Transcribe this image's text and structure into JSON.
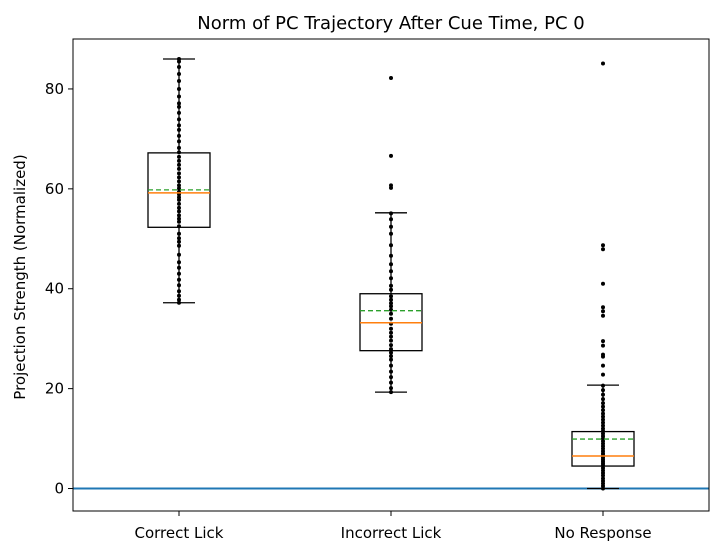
{
  "chart_data": {
    "type": "box",
    "title": "Norm of PC Trajectory After Cue Time, PC 0",
    "xlabel": "",
    "ylabel": "Projection Strength (Normalized)",
    "ylim": [
      -4.5,
      90
    ],
    "yticks": [
      0,
      20,
      40,
      60,
      80
    ],
    "categories": [
      "Correct Lick",
      "Incorrect Lick",
      "No Response"
    ],
    "reference_line": {
      "y": 0,
      "color": "#1f77b4"
    },
    "colors": {
      "box": "#000000",
      "median": "#ff7f0e",
      "mean": "#2ca02c",
      "points": "#000000"
    },
    "boxes": [
      {
        "category": "Correct Lick",
        "whisker_low": 37.2,
        "q1": 52.3,
        "median": 59.2,
        "mean": 59.8,
        "q3": 67.2,
        "whisker_high": 86.0,
        "points": [
          37.2,
          37.8,
          38.6,
          39.5,
          40.7,
          41.8,
          43.0,
          44.2,
          45.3,
          46.8,
          48.6,
          49.4,
          50.1,
          51.0,
          52.5,
          53.4,
          54.0,
          54.7,
          55.5,
          56.2,
          57.0,
          57.8,
          58.3,
          58.9,
          59.4,
          60.1,
          60.7,
          61.5,
          62.3,
          63.1,
          64.0,
          64.8,
          65.6,
          66.4,
          67.3,
          68.2,
          69.5,
          70.6,
          71.8,
          72.7,
          73.9,
          75.2,
          76.4,
          77.1,
          78.5,
          80.0,
          81.6,
          83.0,
          84.4,
          85.5,
          86.0
        ]
      },
      {
        "category": "Incorrect Lick",
        "whisker_low": 19.3,
        "q1": 27.6,
        "median": 33.2,
        "mean": 35.6,
        "q3": 39.0,
        "whisker_high": 55.2,
        "points": [
          19.3,
          20.1,
          21.2,
          22.3,
          23.4,
          24.6,
          25.8,
          26.5,
          27.2,
          27.9,
          28.7,
          29.6,
          30.4,
          31.2,
          32.0,
          33.0,
          34.0,
          35.0,
          35.8,
          36.5,
          37.1,
          37.8,
          38.5,
          39.8,
          40.6,
          42.1,
          43.5,
          44.9,
          46.6,
          48.7,
          51.0,
          52.4,
          53.9,
          55.1,
          60.2,
          60.7,
          66.6,
          82.2
        ]
      },
      {
        "category": "No Response",
        "whisker_low": 0.0,
        "q1": 4.5,
        "median": 6.5,
        "mean": 9.9,
        "q3": 11.4,
        "whisker_high": 20.7,
        "points": [
          0.0,
          0.5,
          1.0,
          1.5,
          2.0,
          2.6,
          3.1,
          3.6,
          4.1,
          4.6,
          5.0,
          5.4,
          5.8,
          6.2,
          6.6,
          7.0,
          7.5,
          8.0,
          8.5,
          9.0,
          9.5,
          10.0,
          10.5,
          11.0,
          11.5,
          12.0,
          12.6,
          13.2,
          13.8,
          14.4,
          15.0,
          15.7,
          16.4,
          17.1,
          17.9,
          18.8,
          19.7,
          20.6,
          22.8,
          24.6,
          26.4,
          26.8,
          28.6,
          29.5,
          34.6,
          35.5,
          36.3,
          41.0,
          47.9,
          48.7,
          85.1
        ]
      }
    ]
  }
}
